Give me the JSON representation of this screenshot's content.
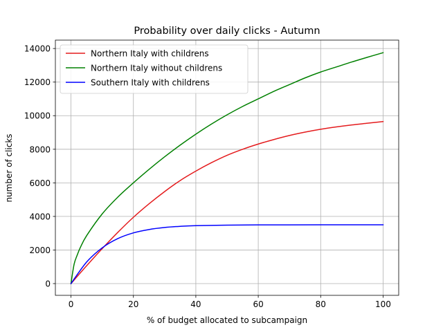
{
  "chart_data": {
    "type": "line",
    "title": "Probability over daily clicks - Autumn",
    "xlabel": "% of budget allocated to subcampaign",
    "ylabel": "number of clicks",
    "xlim": [
      -5,
      105
    ],
    "ylim": [
      -700,
      14500
    ],
    "xticks": [
      0,
      20,
      40,
      60,
      80,
      100
    ],
    "yticks": [
      0,
      2000,
      4000,
      6000,
      8000,
      10000,
      12000,
      14000
    ],
    "grid": true,
    "legend_position": "top-left",
    "series": [
      {
        "name": "Northern Italy with childrens",
        "color": "#e41a1c",
        "x": [
          0,
          5,
          10,
          15,
          20,
          25,
          30,
          35,
          40,
          45,
          50,
          55,
          60,
          65,
          70,
          75,
          80,
          85,
          90,
          95,
          100
        ],
        "y": [
          0,
          1060,
          2080,
          3050,
          3950,
          4750,
          5480,
          6140,
          6700,
          7200,
          7640,
          8000,
          8310,
          8580,
          8820,
          9020,
          9190,
          9330,
          9450,
          9550,
          9650
        ]
      },
      {
        "name": "Northern Italy without childrens",
        "color": "#008000",
        "x": [
          0,
          1,
          2,
          3,
          5,
          10,
          15,
          20,
          25,
          30,
          35,
          40,
          45,
          50,
          55,
          60,
          65,
          70,
          75,
          80,
          85,
          90,
          95,
          100
        ],
        "y": [
          0,
          1150,
          1700,
          2150,
          2850,
          4150,
          5150,
          6000,
          6800,
          7550,
          8250,
          8900,
          9500,
          10050,
          10550,
          11000,
          11450,
          11850,
          12250,
          12600,
          12900,
          13200,
          13480,
          13750
        ]
      },
      {
        "name": "Southern Italy with childrens",
        "color": "#0000ff",
        "x": [
          0,
          5,
          10,
          15,
          20,
          25,
          30,
          35,
          40,
          50,
          60,
          70,
          80,
          90,
          100
        ],
        "y": [
          0,
          1280,
          2130,
          2680,
          3020,
          3220,
          3340,
          3410,
          3450,
          3480,
          3495,
          3498,
          3500,
          3500,
          3500
        ]
      }
    ]
  }
}
